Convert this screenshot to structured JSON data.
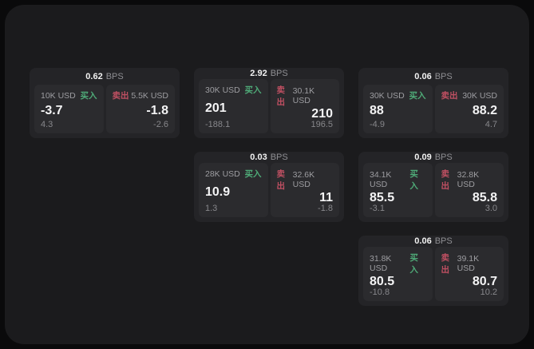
{
  "colors": {
    "page_bg": "#0a0a0b",
    "panel_bg": "#1b1b1d",
    "card_bg": "#242427",
    "tile_bg": "#2b2b2e",
    "text_primary": "#f2f2f2",
    "text_secondary": "#9d9da1",
    "buy_green": "#4fab78",
    "sell_red": "#c05062"
  },
  "labels": {
    "bps_unit": "BPS",
    "buy": "买入",
    "sell": "卖出"
  },
  "cards": [
    {
      "row": 1,
      "col": 1,
      "bps": "0.62",
      "buy": {
        "amount": "10K USD",
        "value": "-3.7",
        "sub": "4.3"
      },
      "sell": {
        "amount": "5.5K USD",
        "value": "-1.8",
        "sub": "-2.6"
      }
    },
    {
      "row": 1,
      "col": 2,
      "bps": "2.92",
      "buy": {
        "amount": "30K USD",
        "value": "201",
        "sub": "-188.1"
      },
      "sell": {
        "amount": "30.1K USD",
        "value": "210",
        "sub": "196.5"
      }
    },
    {
      "row": 1,
      "col": 3,
      "bps": "0.06",
      "buy": {
        "amount": "30K USD",
        "value": "88",
        "sub": "-4.9"
      },
      "sell": {
        "amount": "30K USD",
        "value": "88.2",
        "sub": "4.7"
      }
    },
    {
      "row": 2,
      "col": 2,
      "bps": "0.03",
      "buy": {
        "amount": "28K USD",
        "value": "10.9",
        "sub": "1.3"
      },
      "sell": {
        "amount": "32.6K USD",
        "value": "11",
        "sub": "-1.8"
      }
    },
    {
      "row": 2,
      "col": 3,
      "bps": "0.09",
      "buy": {
        "amount": "34.1K USD",
        "value": "85.5",
        "sub": "-3.1"
      },
      "sell": {
        "amount": "32.8K USD",
        "value": "85.8",
        "sub": "3.0"
      }
    },
    {
      "row": 3,
      "col": 3,
      "bps": "0.06",
      "buy": {
        "amount": "31.8K USD",
        "value": "80.5",
        "sub": "-10.8"
      },
      "sell": {
        "amount": "39.1K USD",
        "value": "80.7",
        "sub": "10.2"
      }
    }
  ]
}
